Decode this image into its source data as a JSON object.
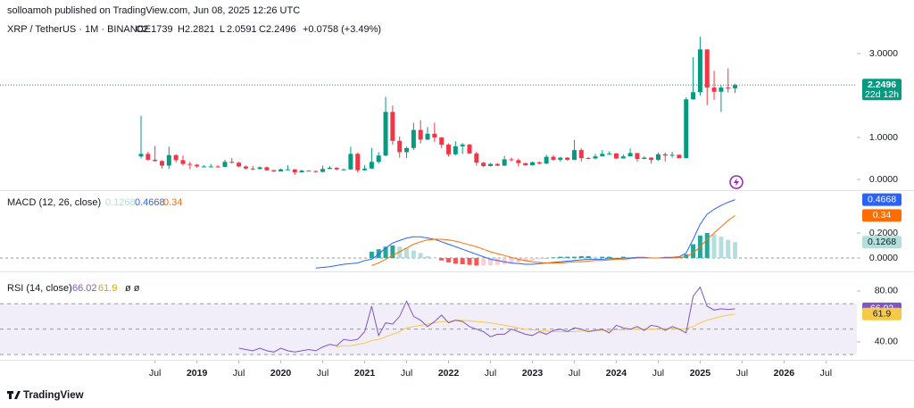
{
  "header": {
    "publisher": "solloamoh published on TradingView.com, Jun 08, 2025 12:26 UTC"
  },
  "footer": {
    "logo": "TradingView"
  },
  "chart_data": {
    "type": "candlestick",
    "symbol": "XRP / TetherUS · 1M · BINANCE",
    "ohlc_labels": [
      "O",
      "H",
      "L",
      "C"
    ],
    "change_label": "+0.0758 (+3.49%)",
    "countdown": "22d 12h",
    "up_color": "#089981",
    "down_color": "#f23645",
    "last_price_line": true,
    "x": [
      "2018-05",
      "2018-06",
      "2018-07",
      "2018-08",
      "2018-09",
      "2018-10",
      "2018-11",
      "2018-12",
      "2019-01",
      "2019-02",
      "2019-03",
      "2019-04",
      "2019-05",
      "2019-06",
      "2019-07",
      "2019-08",
      "2019-09",
      "2019-10",
      "2019-11",
      "2019-12",
      "2020-01",
      "2020-02",
      "2020-03",
      "2020-04",
      "2020-05",
      "2020-06",
      "2020-07",
      "2020-08",
      "2020-09",
      "2020-10",
      "2020-11",
      "2020-12",
      "2021-01",
      "2021-02",
      "2021-03",
      "2021-04",
      "2021-05",
      "2021-06",
      "2021-07",
      "2021-08",
      "2021-09",
      "2021-10",
      "2021-11",
      "2021-12",
      "2022-01",
      "2022-02",
      "2022-03",
      "2022-04",
      "2022-05",
      "2022-06",
      "2022-07",
      "2022-08",
      "2022-09",
      "2022-10",
      "2022-11",
      "2022-12",
      "2023-01",
      "2023-02",
      "2023-03",
      "2023-04",
      "2023-05",
      "2023-06",
      "2023-07",
      "2023-08",
      "2023-09",
      "2023-10",
      "2023-11",
      "2023-12",
      "2024-01",
      "2024-02",
      "2024-03",
      "2024-04",
      "2024-05",
      "2024-06",
      "2024-07",
      "2024-08",
      "2024-09",
      "2024-10",
      "2024-11",
      "2024-12",
      "2025-01",
      "2025-02",
      "2025-03",
      "2025-04",
      "2025-05",
      "2025-06"
    ],
    "candles": [
      [
        0.55,
        1.52,
        0.5,
        0.61
      ],
      [
        0.61,
        0.66,
        0.45,
        0.47
      ],
      [
        0.47,
        0.8,
        0.42,
        0.44
      ],
      [
        0.44,
        0.46,
        0.26,
        0.33
      ],
      [
        0.33,
        0.78,
        0.25,
        0.58
      ],
      [
        0.58,
        0.6,
        0.41,
        0.46
      ],
      [
        0.46,
        0.57,
        0.33,
        0.37
      ],
      [
        0.37,
        0.42,
        0.25,
        0.35
      ],
      [
        0.35,
        0.37,
        0.28,
        0.31
      ],
      [
        0.31,
        0.34,
        0.29,
        0.31
      ],
      [
        0.31,
        0.37,
        0.29,
        0.31
      ],
      [
        0.31,
        0.34,
        0.28,
        0.3
      ],
      [
        0.3,
        0.47,
        0.29,
        0.42
      ],
      [
        0.42,
        0.51,
        0.38,
        0.4
      ],
      [
        0.4,
        0.42,
        0.29,
        0.31
      ],
      [
        0.31,
        0.33,
        0.24,
        0.26
      ],
      [
        0.26,
        0.32,
        0.22,
        0.25
      ],
      [
        0.25,
        0.31,
        0.24,
        0.29
      ],
      [
        0.29,
        0.31,
        0.21,
        0.22
      ],
      [
        0.22,
        0.23,
        0.18,
        0.19
      ],
      [
        0.19,
        0.26,
        0.19,
        0.24
      ],
      [
        0.24,
        0.34,
        0.23,
        0.24
      ],
      [
        0.24,
        0.25,
        0.11,
        0.17
      ],
      [
        0.17,
        0.23,
        0.17,
        0.21
      ],
      [
        0.21,
        0.22,
        0.19,
        0.2
      ],
      [
        0.2,
        0.21,
        0.17,
        0.18
      ],
      [
        0.18,
        0.33,
        0.17,
        0.25
      ],
      [
        0.25,
        0.32,
        0.25,
        0.28
      ],
      [
        0.28,
        0.29,
        0.22,
        0.24
      ],
      [
        0.24,
        0.26,
        0.23,
        0.24
      ],
      [
        0.24,
        0.78,
        0.23,
        0.61
      ],
      [
        0.61,
        0.64,
        0.17,
        0.22
      ],
      [
        0.22,
        0.34,
        0.21,
        0.26
      ],
      [
        0.26,
        0.75,
        0.25,
        0.42
      ],
      [
        0.42,
        0.65,
        0.38,
        0.57
      ],
      [
        0.57,
        1.97,
        0.55,
        1.61
      ],
      [
        1.61,
        1.76,
        0.83,
        0.92
      ],
      [
        0.92,
        1.02,
        0.52,
        0.65
      ],
      [
        0.65,
        0.78,
        0.51,
        0.75
      ],
      [
        0.75,
        1.35,
        0.7,
        1.18
      ],
      [
        1.18,
        1.41,
        0.86,
        0.95
      ],
      [
        0.95,
        1.25,
        0.94,
        1.09
      ],
      [
        1.09,
        1.35,
        0.9,
        1.0
      ],
      [
        1.0,
        1.01,
        0.75,
        0.83
      ],
      [
        0.83,
        0.86,
        0.55,
        0.6
      ],
      [
        0.6,
        0.91,
        0.58,
        0.79
      ],
      [
        0.79,
        0.87,
        0.61,
        0.83
      ],
      [
        0.83,
        0.85,
        0.61,
        0.62
      ],
      [
        0.62,
        0.66,
        0.33,
        0.4
      ],
      [
        0.4,
        0.42,
        0.29,
        0.32
      ],
      [
        0.32,
        0.39,
        0.31,
        0.37
      ],
      [
        0.37,
        0.39,
        0.32,
        0.33
      ],
      [
        0.33,
        0.56,
        0.32,
        0.48
      ],
      [
        0.48,
        0.52,
        0.43,
        0.46
      ],
      [
        0.46,
        0.5,
        0.31,
        0.39
      ],
      [
        0.39,
        0.39,
        0.33,
        0.34
      ],
      [
        0.34,
        0.43,
        0.33,
        0.41
      ],
      [
        0.41,
        0.43,
        0.36,
        0.38
      ],
      [
        0.38,
        0.59,
        0.36,
        0.54
      ],
      [
        0.54,
        0.58,
        0.45,
        0.47
      ],
      [
        0.47,
        0.54,
        0.42,
        0.52
      ],
      [
        0.52,
        0.53,
        0.45,
        0.47
      ],
      [
        0.47,
        0.94,
        0.46,
        0.7
      ],
      [
        0.7,
        0.74,
        0.43,
        0.51
      ],
      [
        0.51,
        0.54,
        0.48,
        0.5
      ],
      [
        0.5,
        0.61,
        0.48,
        0.55
      ],
      [
        0.55,
        0.7,
        0.55,
        0.61
      ],
      [
        0.61,
        0.67,
        0.59,
        0.62
      ],
      [
        0.62,
        0.63,
        0.49,
        0.5
      ],
      [
        0.5,
        0.6,
        0.5,
        0.55
      ],
      [
        0.55,
        0.74,
        0.55,
        0.63
      ],
      [
        0.63,
        0.63,
        0.42,
        0.49
      ],
      [
        0.49,
        0.55,
        0.48,
        0.52
      ],
      [
        0.52,
        0.53,
        0.38,
        0.47
      ],
      [
        0.47,
        0.64,
        0.44,
        0.6
      ],
      [
        0.6,
        0.64,
        0.43,
        0.57
      ],
      [
        0.57,
        0.66,
        0.52,
        0.59
      ],
      [
        0.59,
        0.59,
        0.5,
        0.51
      ],
      [
        0.51,
        1.96,
        0.5,
        1.91
      ],
      [
        1.91,
        2.91,
        1.9,
        2.08
      ],
      [
        2.08,
        3.4,
        2.0,
        3.1
      ],
      [
        3.1,
        3.1,
        1.77,
        2.19
      ],
      [
        2.19,
        2.59,
        1.9,
        2.09
      ],
      [
        2.09,
        2.25,
        1.61,
        2.19
      ],
      [
        2.19,
        2.65,
        2.07,
        2.18
      ],
      [
        2.1739,
        2.2821,
        2.0591,
        2.2496
      ]
    ],
    "ylim": [
      -0.255,
      3.745
    ],
    "yticks": [
      {
        "value": 3,
        "label": "3.0000"
      },
      {
        "value": 1,
        "label": "1.0000"
      },
      {
        "value": 0,
        "label": "0.0000"
      }
    ],
    "xticks": [
      {
        "value": "2018-07",
        "label": "Jul"
      },
      {
        "value": "2019-01",
        "label": "2019"
      },
      {
        "value": "2019-07",
        "label": "Jul"
      },
      {
        "value": "2020-01",
        "label": "2020"
      },
      {
        "value": "2020-07",
        "label": "Jul"
      },
      {
        "value": "2021-01",
        "label": "2021"
      },
      {
        "value": "2021-07",
        "label": "Jul"
      },
      {
        "value": "2022-01",
        "label": "2022"
      },
      {
        "value": "2022-07",
        "label": "Jul"
      },
      {
        "value": "2023-01",
        "label": "2023"
      },
      {
        "value": "2023-07",
        "label": "Jul"
      },
      {
        "value": "2024-01",
        "label": "2024"
      },
      {
        "value": "2024-07",
        "label": "Jul"
      },
      {
        "value": "2025-01",
        "label": "2025"
      },
      {
        "value": "2025-07",
        "label": "Jul"
      },
      {
        "value": "2026-01",
        "label": "2026"
      },
      {
        "value": "2026-07",
        "label": "Jul"
      }
    ],
    "indicators": [
      {
        "type": "macd",
        "title": "MACD (12, 26, close)",
        "macd_color": "#2962ff",
        "signal_color": "#ff6d00",
        "hist_colors": [
          "#26a69a",
          "#b2dfdb",
          "#ff5252",
          "#ffcdd2"
        ],
        "ylim": [
          -0.1,
          0.521
        ],
        "yticks": [
          {
            "value": 0.2,
            "label": "0.2000"
          },
          {
            "value": 0,
            "label": "0.0000"
          }
        ],
        "macd": [
          null,
          null,
          null,
          null,
          null,
          null,
          null,
          null,
          null,
          null,
          null,
          null,
          null,
          null,
          null,
          null,
          null,
          null,
          null,
          null,
          null,
          null,
          null,
          null,
          null,
          -0.08,
          -0.075,
          -0.07,
          -0.06,
          -0.05,
          -0.045,
          -0.04,
          -0.02,
          -0.01,
          0.03,
          0.08,
          0.12,
          0.14,
          0.16,
          0.17,
          0.17,
          0.16,
          0.15,
          0.13,
          0.11,
          0.09,
          0.07,
          0.05,
          0.03,
          0.01,
          -0.01,
          -0.02,
          -0.03,
          -0.04,
          -0.045,
          -0.05,
          -0.05,
          -0.045,
          -0.04,
          -0.035,
          -0.03,
          -0.025,
          -0.02,
          -0.015,
          -0.01,
          -0.01,
          -0.01,
          -0.005,
          -0.005,
          0,
          0,
          0.005,
          0.005,
          0,
          0,
          0.005,
          0.005,
          0.01,
          0.04,
          0.15,
          0.27,
          0.35,
          0.39,
          0.42,
          0.445,
          0.4668
        ],
        "signal": [
          null,
          null,
          null,
          null,
          null,
          null,
          null,
          null,
          null,
          null,
          null,
          null,
          null,
          null,
          null,
          null,
          null,
          null,
          null,
          null,
          null,
          null,
          null,
          null,
          null,
          null,
          null,
          null,
          null,
          null,
          null,
          null,
          null,
          -0.06,
          -0.04,
          -0.01,
          0.02,
          0.05,
          0.08,
          0.11,
          0.13,
          0.145,
          0.15,
          0.15,
          0.145,
          0.135,
          0.12,
          0.105,
          0.09,
          0.07,
          0.05,
          0.035,
          0.02,
          0.005,
          -0.01,
          -0.02,
          -0.03,
          -0.035,
          -0.04,
          -0.04,
          -0.04,
          -0.035,
          -0.03,
          -0.03,
          -0.025,
          -0.02,
          -0.02,
          -0.015,
          -0.01,
          -0.01,
          -0.005,
          0,
          0,
          0,
          0,
          0,
          0,
          0.005,
          0.01,
          0.04,
          0.09,
          0.15,
          0.2,
          0.25,
          0.3,
          0.34
        ],
        "histogram": [
          null,
          null,
          null,
          null,
          null,
          null,
          null,
          null,
          null,
          null,
          null,
          null,
          null,
          null,
          null,
          null,
          null,
          null,
          null,
          null,
          null,
          null,
          null,
          null,
          null,
          null,
          null,
          null,
          null,
          null,
          null,
          null,
          null,
          0.05,
          0.07,
          0.09,
          0.1,
          0.09,
          0.08,
          0.06,
          0.04,
          0.015,
          0,
          -0.02,
          -0.035,
          -0.045,
          -0.05,
          -0.055,
          -0.06,
          -0.06,
          -0.06,
          -0.055,
          -0.05,
          -0.045,
          -0.035,
          -0.03,
          -0.02,
          -0.01,
          0,
          0.005,
          0.01,
          0.01,
          0.01,
          0.015,
          0.015,
          0.01,
          0.01,
          0.01,
          0.005,
          0.01,
          0.005,
          0.005,
          0.005,
          0,
          0,
          0.005,
          0.005,
          0.005,
          0.03,
          0.11,
          0.18,
          0.2,
          0.19,
          0.17,
          0.145,
          0.1268
        ]
      },
      {
        "type": "rsi",
        "title": "RSI (14, close)",
        "suffix": "ø ø",
        "rsi_color": "#7e57c2",
        "ma_color": "#f7c948",
        "bands": [
          70,
          50,
          30
        ],
        "ylim": [
          28,
          91.2
        ],
        "yticks": [
          {
            "value": 80,
            "label": "80.00"
          },
          {
            "value": 40,
            "label": "40.00"
          }
        ],
        "rsi": [
          null,
          null,
          null,
          null,
          null,
          null,
          null,
          null,
          null,
          null,
          null,
          null,
          null,
          null,
          35,
          34,
          33,
          35,
          33,
          32,
          35,
          33,
          32,
          33,
          34,
          33,
          36,
          38,
          37,
          42,
          41,
          42,
          48,
          68,
          45,
          55,
          54,
          60,
          72,
          60,
          57,
          52,
          56,
          61,
          55,
          57,
          56,
          52,
          50,
          48,
          44,
          46,
          46,
          50,
          48,
          46,
          45,
          48,
          46,
          49,
          50,
          48,
          51,
          50,
          48,
          49,
          50,
          47,
          53,
          51,
          50,
          52,
          49,
          53,
          52,
          49,
          52,
          50,
          47,
          76,
          83,
          68,
          65,
          66,
          65.5,
          66.02
        ],
        "ma": [
          null,
          null,
          null,
          null,
          null,
          null,
          null,
          null,
          null,
          null,
          null,
          null,
          null,
          null,
          null,
          null,
          null,
          null,
          null,
          null,
          null,
          null,
          null,
          null,
          null,
          null,
          null,
          null,
          36,
          37,
          37,
          38,
          39,
          41,
          42,
          44,
          46,
          48,
          51,
          52,
          53,
          54,
          55,
          56,
          56,
          57,
          57,
          56.5,
          56,
          55.5,
          55,
          54,
          53,
          52,
          51,
          50,
          49.5,
          49,
          48.5,
          48,
          48,
          48,
          48,
          48.5,
          48.5,
          49,
          49,
          49,
          49.5,
          49.5,
          50,
          50,
          50,
          50,
          50.5,
          50.5,
          50.5,
          50,
          50.5,
          52,
          55,
          57,
          58.5,
          60,
          61,
          61.9
        ]
      }
    ]
  }
}
